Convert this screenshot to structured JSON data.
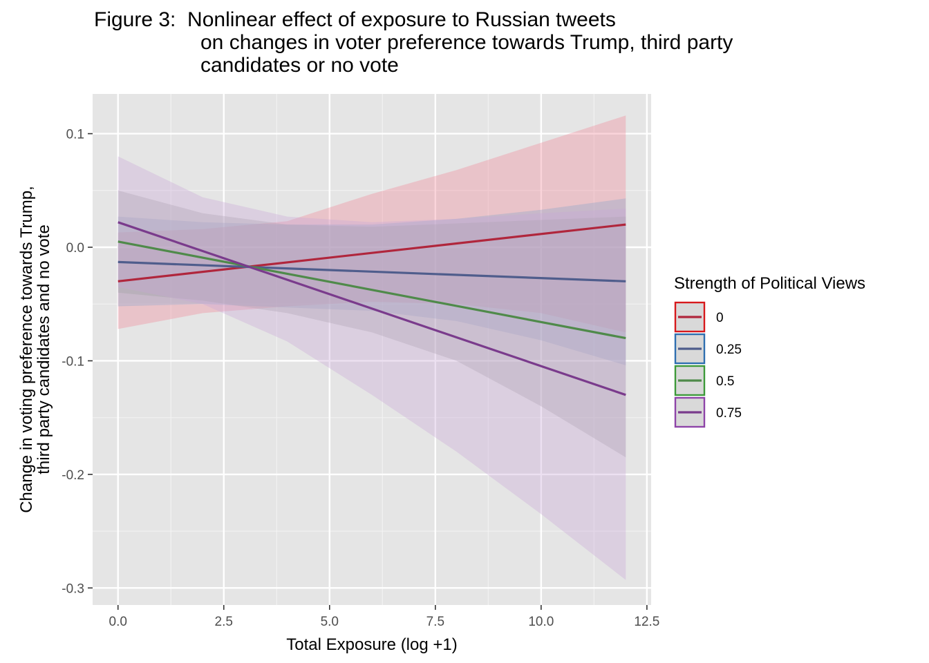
{
  "title_lines": [
    "Figure 3:  Nonlinear effect of exposure to Russian tweets",
    "on changes in voter preference towards Trump, third party",
    "candidates or no vote"
  ],
  "chart_data": {
    "type": "line",
    "title": "Figure 3:  Nonlinear effect of exposure to Russian tweets on changes in voter preference towards Trump, third party candidates or no vote",
    "xlabel": "Total Exposure (log +1)",
    "ylabel_lines": [
      "Change in voting preference towards Trump,",
      "third party candidates and no vote"
    ],
    "xlim": [
      -0.6,
      12.6
    ],
    "ylim": [
      -0.315,
      0.135
    ],
    "x_ticks": [
      0.0,
      2.5,
      5.0,
      7.5,
      10.0,
      12.5
    ],
    "x_tick_labels": [
      "0.0",
      "2.5",
      "5.0",
      "7.5",
      "10.0",
      "12.5"
    ],
    "y_ticks": [
      0.1,
      0.0,
      -0.1,
      -0.2,
      -0.3
    ],
    "y_tick_labels": [
      "0.1",
      "0.0",
      "-0.1",
      "-0.2",
      "-0.3"
    ],
    "grid": true,
    "background": "#e5e5e5",
    "legend": {
      "title": "Strength of Political Views",
      "position": "right"
    },
    "series": [
      {
        "name": "0",
        "color": "#b0263c",
        "key_color": "#d7191c",
        "ribbon_color": "#f08496",
        "x": [
          0,
          12
        ],
        "y": [
          -0.03,
          0.02
        ],
        "ribbon_x": [
          0,
          2,
          4,
          6,
          8,
          10,
          12
        ],
        "ribbon_lower": [
          -0.072,
          -0.058,
          -0.052,
          -0.048,
          -0.05,
          -0.058,
          -0.075
        ],
        "ribbon_upper": [
          0.013,
          0.016,
          0.023,
          0.047,
          0.068,
          0.092,
          0.116
        ]
      },
      {
        "name": "0.25",
        "color": "#4f5d8c",
        "key_color": "#2f6fb0",
        "ribbon_color": "#8aa4c8",
        "x": [
          0,
          12
        ],
        "y": [
          -0.013,
          -0.03
        ],
        "ribbon_x": [
          0,
          2,
          4,
          6,
          8,
          10,
          12
        ],
        "ribbon_lower": [
          -0.052,
          -0.05,
          -0.053,
          -0.056,
          -0.065,
          -0.082,
          -0.104
        ],
        "ribbon_upper": [
          0.027,
          0.022,
          0.02,
          0.02,
          0.025,
          0.033,
          0.043
        ]
      },
      {
        "name": "0.5",
        "color": "#4f8a4a",
        "key_color": "#3d9a3a",
        "ribbon_color": "#a0a0a0",
        "x": [
          0,
          12
        ],
        "y": [
          0.005,
          -0.08
        ],
        "ribbon_x": [
          0,
          2,
          4,
          6,
          8,
          10,
          12
        ],
        "ribbon_lower": [
          -0.04,
          -0.047,
          -0.058,
          -0.075,
          -0.1,
          -0.14,
          -0.185
        ],
        "ribbon_upper": [
          0.05,
          0.03,
          0.02,
          0.018,
          0.021,
          0.024,
          0.027
        ]
      },
      {
        "name": "0.75",
        "color": "#7a3b8c",
        "key_color": "#8e44a8",
        "ribbon_color": "#c9a6d8",
        "x": [
          0,
          12
        ],
        "y": [
          0.022,
          -0.13
        ],
        "ribbon_x": [
          0,
          2,
          4,
          6,
          8,
          10,
          12
        ],
        "ribbon_lower": [
          -0.035,
          -0.05,
          -0.083,
          -0.13,
          -0.18,
          -0.235,
          -0.293
        ],
        "ribbon_upper": [
          0.08,
          0.044,
          0.027,
          0.022,
          0.025,
          0.03,
          0.034
        ]
      }
    ]
  }
}
